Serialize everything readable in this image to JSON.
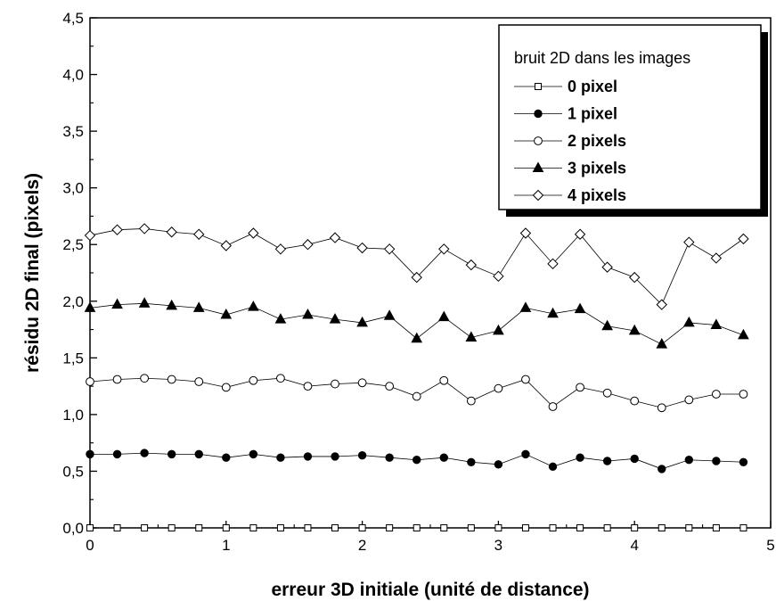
{
  "chart_data": {
    "type": "line",
    "xlabel": "erreur 3D initiale (unité de distance)",
    "ylabel": "résidu 2D final (pixels)",
    "xlim": [
      0,
      5
    ],
    "ylim": [
      0,
      4.5
    ],
    "x_ticks": [
      "0",
      "1",
      "2",
      "3",
      "4",
      "5"
    ],
    "y_ticks": [
      "0,0",
      "0,5",
      "1,0",
      "1,5",
      "2,0",
      "2,5",
      "3,0",
      "3,5",
      "4,0",
      "4,5"
    ],
    "grid": false,
    "legend": {
      "title": "bruit 2D dans les images",
      "placement": "top-right"
    },
    "x": [
      0,
      0.2,
      0.4,
      0.6,
      0.8,
      1.0,
      1.2,
      1.4,
      1.6,
      1.8,
      2.0,
      2.2,
      2.4,
      2.6,
      2.8,
      3.0,
      3.2,
      3.4,
      3.6,
      3.8,
      4.0,
      4.2,
      4.4,
      4.6,
      4.8
    ],
    "series": [
      {
        "name": "0 pixel",
        "marker": "square-open",
        "values": [
          0,
          0,
          0,
          0,
          0,
          0,
          0,
          0,
          0,
          0,
          0,
          0,
          0,
          0,
          0,
          0,
          0,
          0,
          0,
          0,
          0,
          0,
          0,
          0,
          0
        ]
      },
      {
        "name": "1 pixel",
        "marker": "circle-filled",
        "values": [
          0.65,
          0.65,
          0.66,
          0.65,
          0.65,
          0.62,
          0.65,
          0.62,
          0.63,
          0.63,
          0.64,
          0.62,
          0.6,
          0.62,
          0.58,
          0.56,
          0.65,
          0.54,
          0.62,
          0.59,
          0.61,
          0.52,
          0.6,
          0.59,
          0.58
        ]
      },
      {
        "name": "2 pixels",
        "marker": "circle-open",
        "values": [
          1.29,
          1.31,
          1.32,
          1.31,
          1.29,
          1.24,
          1.3,
          1.32,
          1.25,
          1.27,
          1.28,
          1.25,
          1.16,
          1.3,
          1.12,
          1.23,
          1.31,
          1.07,
          1.24,
          1.19,
          1.12,
          1.06,
          1.13,
          1.18,
          1.18
        ]
      },
      {
        "name": "3 pixels",
        "marker": "triangle-filled",
        "values": [
          1.94,
          1.97,
          1.98,
          1.96,
          1.94,
          1.88,
          1.95,
          1.84,
          1.88,
          1.84,
          1.81,
          1.87,
          1.67,
          1.86,
          1.68,
          1.74,
          1.94,
          1.89,
          1.93,
          1.78,
          1.74,
          1.62,
          1.81,
          1.79,
          1.7
        ]
      },
      {
        "name": "4 pixels",
        "marker": "diamond-open",
        "values": [
          2.58,
          2.63,
          2.64,
          2.61,
          2.59,
          2.49,
          2.6,
          2.46,
          2.5,
          2.56,
          2.47,
          2.46,
          2.21,
          2.46,
          2.32,
          2.22,
          2.6,
          2.33,
          2.59,
          2.3,
          2.21,
          1.97,
          2.52,
          2.38,
          2.55
        ]
      }
    ]
  }
}
